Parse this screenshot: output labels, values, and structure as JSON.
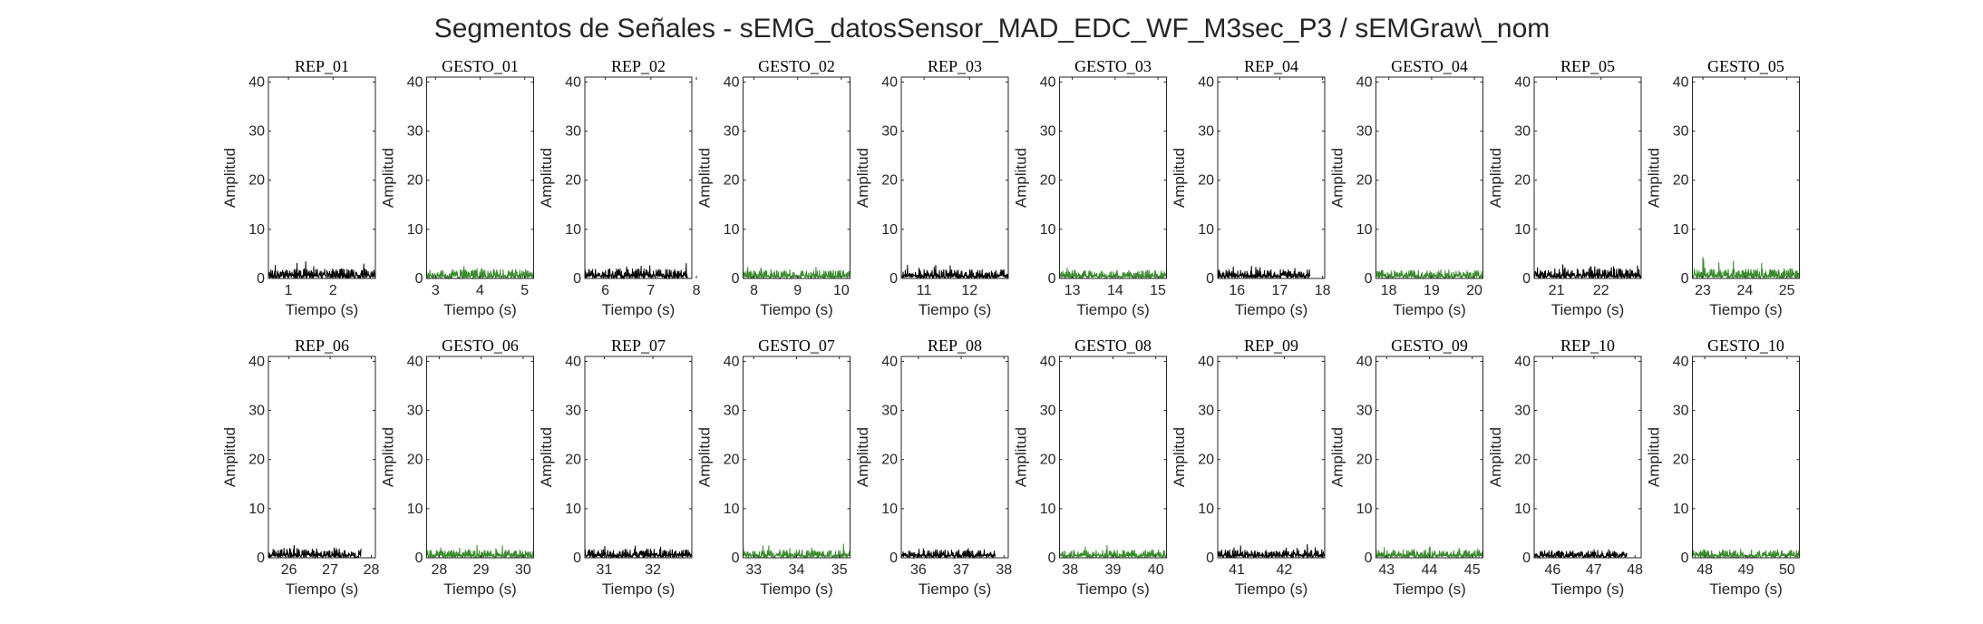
{
  "figure_title": "Segmentos de Señales - sEMG_datosSensor_MAD_EDC_WF_M3sec_P3 / sEMGraw\\_nom",
  "colors": {
    "rep": "#000000",
    "gesto": "#3a8a2e",
    "axis": "#262626"
  },
  "chart_data": [
    {
      "type": "line",
      "title": "REP_01",
      "xlabel": "Tiempo (s)",
      "ylabel": "Amplitud",
      "xlim": [
        0.55,
        2.95
      ],
      "xticks": [
        1,
        2
      ],
      "ylim": [
        0,
        41
      ],
      "yticks": [
        0,
        10,
        20,
        30,
        40
      ],
      "grid": false,
      "series": [
        {
          "x": [
            0.55,
            2.95
          ],
          "values": [
            1.2,
            1.2
          ],
          "color": "#000000",
          "max": 3.5
        }
      ]
    },
    {
      "type": "line",
      "title": "GESTO_01",
      "xlabel": "Tiempo (s)",
      "ylabel": "Amplitud",
      "xlim": [
        2.8,
        5.2
      ],
      "xticks": [
        3,
        4,
        5
      ],
      "ylim": [
        0,
        41
      ],
      "yticks": [
        0,
        10,
        20,
        30,
        40
      ],
      "grid": false,
      "series": [
        {
          "x": [
            2.8,
            5.2
          ],
          "values": [
            1.1,
            1.1
          ],
          "color": "#3a8a2e",
          "max": 3.3
        }
      ]
    },
    {
      "type": "line",
      "title": "REP_02",
      "xlabel": "Tiempo (s)",
      "ylabel": "Amplitud",
      "xlim": [
        5.55,
        7.9
      ],
      "xticks": [
        6,
        7,
        8
      ],
      "ylim": [
        0,
        41
      ],
      "yticks": [
        0,
        10,
        20,
        30,
        40
      ],
      "grid": false,
      "series": [
        {
          "x": [
            5.55,
            7.8
          ],
          "values": [
            1.2,
            1.2
          ],
          "color": "#000000",
          "max": 3.2
        }
      ]
    },
    {
      "type": "line",
      "title": "GESTO_02",
      "xlabel": "Tiempo (s)",
      "ylabel": "Amplitud",
      "xlim": [
        7.75,
        10.2
      ],
      "xticks": [
        8,
        9,
        10
      ],
      "ylim": [
        0,
        41
      ],
      "yticks": [
        0,
        10,
        20,
        30,
        40
      ],
      "grid": false,
      "series": [
        {
          "x": [
            7.75,
            10.2
          ],
          "values": [
            1.0,
            1.0
          ],
          "color": "#3a8a2e",
          "max": 2.5
        }
      ]
    },
    {
      "type": "line",
      "title": "REP_03",
      "xlabel": "Tiempo (s)",
      "ylabel": "Amplitud",
      "xlim": [
        10.5,
        12.85
      ],
      "xticks": [
        11,
        12
      ],
      "ylim": [
        0,
        41
      ],
      "yticks": [
        0,
        10,
        20,
        30,
        40
      ],
      "grid": false,
      "series": [
        {
          "x": [
            10.5,
            12.85
          ],
          "values": [
            1.1,
            1.1
          ],
          "color": "#000000",
          "max": 3.0
        }
      ]
    },
    {
      "type": "line",
      "title": "GESTO_03",
      "xlabel": "Tiempo (s)",
      "ylabel": "Amplitud",
      "xlim": [
        12.7,
        15.2
      ],
      "xticks": [
        13,
        14,
        15
      ],
      "ylim": [
        0,
        41
      ],
      "yticks": [
        0,
        10,
        20,
        30,
        40
      ],
      "grid": false,
      "series": [
        {
          "x": [
            12.7,
            15.2
          ],
          "values": [
            1.0,
            1.0
          ],
          "color": "#3a8a2e",
          "max": 2.3
        }
      ]
    },
    {
      "type": "line",
      "title": "REP_04",
      "xlabel": "Tiempo (s)",
      "ylabel": "Amplitud",
      "xlim": [
        15.55,
        18.05
      ],
      "xticks": [
        16,
        17,
        18
      ],
      "ylim": [
        0,
        41
      ],
      "yticks": [
        0,
        10,
        20,
        30,
        40
      ],
      "grid": false,
      "series": [
        {
          "x": [
            15.55,
            17.7
          ],
          "values": [
            1.1,
            1.1
          ],
          "color": "#000000",
          "max": 2.8
        }
      ]
    },
    {
      "type": "line",
      "title": "GESTO_04",
      "xlabel": "Tiempo (s)",
      "ylabel": "Amplitud",
      "xlim": [
        17.7,
        20.2
      ],
      "xticks": [
        18,
        19,
        20
      ],
      "ylim": [
        0,
        41
      ],
      "yticks": [
        0,
        10,
        20,
        30,
        40
      ],
      "grid": false,
      "series": [
        {
          "x": [
            17.7,
            20.2
          ],
          "values": [
            1.0,
            1.0
          ],
          "color": "#3a8a2e",
          "max": 2.2
        }
      ]
    },
    {
      "type": "line",
      "title": "REP_05",
      "xlabel": "Tiempo (s)",
      "ylabel": "Amplitud",
      "xlim": [
        20.5,
        22.9
      ],
      "xticks": [
        21,
        22
      ],
      "ylim": [
        0,
        41
      ],
      "yticks": [
        0,
        10,
        20,
        30,
        40
      ],
      "grid": false,
      "series": [
        {
          "x": [
            20.5,
            22.9
          ],
          "values": [
            1.2,
            1.2
          ],
          "color": "#000000",
          "max": 3.6
        }
      ]
    },
    {
      "type": "line",
      "title": "GESTO_05",
      "xlabel": "Tiempo (s)",
      "ylabel": "Amplitud",
      "xlim": [
        22.75,
        25.3
      ],
      "xticks": [
        23,
        24,
        25
      ],
      "ylim": [
        0,
        41
      ],
      "yticks": [
        0,
        10,
        20,
        30,
        40
      ],
      "grid": false,
      "series": [
        {
          "x": [
            22.75,
            25.3
          ],
          "values": [
            1.2,
            1.2
          ],
          "color": "#3a8a2e",
          "max": 4.6
        }
      ]
    },
    {
      "type": "line",
      "title": "REP_06",
      "xlabel": "Tiempo (s)",
      "ylabel": "Amplitud",
      "xlim": [
        25.5,
        28.1
      ],
      "xticks": [
        26,
        27,
        28
      ],
      "ylim": [
        0,
        41
      ],
      "yticks": [
        0,
        10,
        20,
        30,
        40
      ],
      "grid": false,
      "series": [
        {
          "x": [
            25.5,
            27.75
          ],
          "values": [
            1.2,
            1.2
          ],
          "color": "#000000",
          "max": 2.6
        }
      ]
    },
    {
      "type": "line",
      "title": "GESTO_06",
      "xlabel": "Tiempo (s)",
      "ylabel": "Amplitud",
      "xlim": [
        27.7,
        30.25
      ],
      "xticks": [
        28,
        29,
        30
      ],
      "ylim": [
        0,
        41
      ],
      "yticks": [
        0,
        10,
        20,
        30,
        40
      ],
      "grid": false,
      "series": [
        {
          "x": [
            27.7,
            30.25
          ],
          "values": [
            1.0,
            1.0
          ],
          "color": "#3a8a2e",
          "max": 2.6
        }
      ]
    },
    {
      "type": "line",
      "title": "REP_07",
      "xlabel": "Tiempo (s)",
      "ylabel": "Amplitud",
      "xlim": [
        30.6,
        32.8
      ],
      "xticks": [
        31,
        32
      ],
      "ylim": [
        0,
        41
      ],
      "yticks": [
        0,
        10,
        20,
        30,
        40
      ],
      "grid": false,
      "series": [
        {
          "x": [
            30.6,
            32.8
          ],
          "values": [
            1.1,
            1.1
          ],
          "color": "#000000",
          "max": 2.6
        }
      ]
    },
    {
      "type": "line",
      "title": "GESTO_07",
      "xlabel": "Tiempo (s)",
      "ylabel": "Amplitud",
      "xlim": [
        32.75,
        35.25
      ],
      "xticks": [
        33,
        34,
        35
      ],
      "ylim": [
        0,
        41
      ],
      "yticks": [
        0,
        10,
        20,
        30,
        40
      ],
      "grid": false,
      "series": [
        {
          "x": [
            32.75,
            35.25
          ],
          "values": [
            1.0,
            1.0
          ],
          "color": "#3a8a2e",
          "max": 3.1
        }
      ]
    },
    {
      "type": "line",
      "title": "REP_08",
      "xlabel": "Tiempo (s)",
      "ylabel": "Amplitud",
      "xlim": [
        35.6,
        38.1
      ],
      "xticks": [
        36,
        37,
        38
      ],
      "ylim": [
        0,
        41
      ],
      "yticks": [
        0,
        10,
        20,
        30,
        40
      ],
      "grid": false,
      "series": [
        {
          "x": [
            35.6,
            37.8
          ],
          "values": [
            1.0,
            1.0
          ],
          "color": "#000000",
          "max": 2.0
        }
      ]
    },
    {
      "type": "line",
      "title": "GESTO_08",
      "xlabel": "Tiempo (s)",
      "ylabel": "Amplitud",
      "xlim": [
        37.75,
        40.25
      ],
      "xticks": [
        38,
        39,
        40
      ],
      "ylim": [
        0,
        41
      ],
      "yticks": [
        0,
        10,
        20,
        30,
        40
      ],
      "grid": false,
      "series": [
        {
          "x": [
            37.75,
            40.25
          ],
          "values": [
            1.0,
            1.0
          ],
          "color": "#3a8a2e",
          "max": 2.7
        }
      ]
    },
    {
      "type": "line",
      "title": "REP_09",
      "xlabel": "Tiempo (s)",
      "ylabel": "Amplitud",
      "xlim": [
        40.6,
        42.85
      ],
      "xticks": [
        41,
        42
      ],
      "ylim": [
        0,
        41
      ],
      "yticks": [
        0,
        10,
        20,
        30,
        40
      ],
      "grid": false,
      "series": [
        {
          "x": [
            40.6,
            42.85
          ],
          "values": [
            1.0,
            1.0
          ],
          "color": "#000000",
          "max": 2.8
        }
      ]
    },
    {
      "type": "line",
      "title": "GESTO_09",
      "xlabel": "Tiempo (s)",
      "ylabel": "Amplitud",
      "xlim": [
        42.75,
        45.25
      ],
      "xticks": [
        43,
        44,
        45
      ],
      "ylim": [
        0,
        41
      ],
      "yticks": [
        0,
        10,
        20,
        30,
        40
      ],
      "grid": false,
      "series": [
        {
          "x": [
            42.75,
            45.25
          ],
          "values": [
            1.0,
            1.0
          ],
          "color": "#3a8a2e",
          "max": 2.4
        }
      ]
    },
    {
      "type": "line",
      "title": "REP_10",
      "xlabel": "Tiempo (s)",
      "ylabel": "Amplitud",
      "xlim": [
        45.55,
        48.15
      ],
      "xticks": [
        46,
        47,
        48
      ],
      "ylim": [
        0,
        41
      ],
      "yticks": [
        0,
        10,
        20,
        30,
        40
      ],
      "grid": false,
      "series": [
        {
          "x": [
            45.55,
            47.8
          ],
          "values": [
            0.9,
            0.9
          ],
          "color": "#000000",
          "max": 1.8
        }
      ]
    },
    {
      "type": "line",
      "title": "GESTO_10",
      "xlabel": "Tiempo (s)",
      "ylabel": "Amplitud",
      "xlim": [
        47.7,
        50.3
      ],
      "xticks": [
        48,
        49,
        50
      ],
      "ylim": [
        0,
        41
      ],
      "yticks": [
        0,
        10,
        20,
        30,
        40
      ],
      "grid": false,
      "series": [
        {
          "x": [
            47.7,
            50.3
          ],
          "values": [
            1.0,
            1.0
          ],
          "color": "#3a8a2e",
          "max": 2.0
        }
      ]
    }
  ]
}
